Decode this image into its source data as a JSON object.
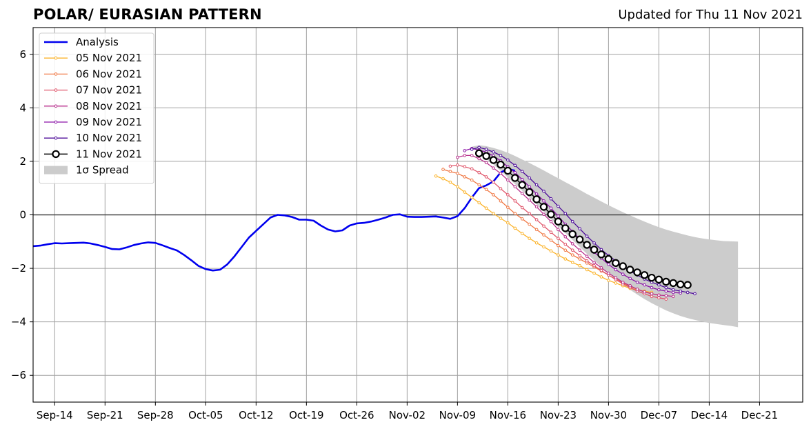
{
  "header": {
    "title": "POLAR/ EURASIAN  PATTERN",
    "updated": "Updated for Thu 11 Nov 2021"
  },
  "chart_data": {
    "type": "line",
    "title": "POLAR/ EURASIAN  PATTERN",
    "subtitle": "Updated for Thu 11 Nov 2021",
    "xlabel": "",
    "ylabel": "",
    "ylim": [
      -7,
      7
    ],
    "xlim": [
      "2021-09-11",
      "2021-12-27"
    ],
    "yticks": [
      -6,
      -4,
      -2,
      0,
      2,
      4,
      6
    ],
    "ytick_labels": [
      "−6",
      "−4",
      "−2",
      "0",
      "2",
      "4",
      "6"
    ],
    "xticks": [
      "2021-09-14",
      "2021-09-21",
      "2021-09-28",
      "2021-10-05",
      "2021-10-12",
      "2021-10-19",
      "2021-10-26",
      "2021-11-02",
      "2021-11-09",
      "2021-11-16",
      "2021-11-23",
      "2021-11-30",
      "2021-12-07",
      "2021-12-14",
      "2021-12-21"
    ],
    "xtick_labels": [
      "Sep-14",
      "Sep-21",
      "Sep-28",
      "Oct-05",
      "Oct-12",
      "Oct-19",
      "Oct-26",
      "Nov-02",
      "Nov-09",
      "Nov-16",
      "Nov-23",
      "Nov-30",
      "Dec-07",
      "Dec-14",
      "Dec-21"
    ],
    "grid": true,
    "legend_position": "top-left",
    "series": [
      {
        "name": "Analysis",
        "color": "#0000ee",
        "style": "thick",
        "start": "2021-09-11",
        "values": [
          -1.17,
          -1.15,
          -1.1,
          -1.06,
          -1.07,
          -1.06,
          -1.05,
          -1.04,
          -1.07,
          -1.13,
          -1.2,
          -1.28,
          -1.29,
          -1.22,
          -1.13,
          -1.07,
          -1.03,
          -1.05,
          -1.14,
          -1.24,
          -1.33,
          -1.5,
          -1.7,
          -1.91,
          -2.03,
          -2.08,
          -2.05,
          -1.85,
          -1.55,
          -1.2,
          -0.85,
          -0.6,
          -0.35,
          -0.1,
          0.0,
          -0.02,
          -0.08,
          -0.18,
          -0.18,
          -0.22,
          -0.4,
          -0.55,
          -0.62,
          -0.58,
          -0.4,
          -0.32,
          -0.3,
          -0.25,
          -0.18,
          -0.1,
          0.0,
          0.02,
          -0.07,
          -0.08,
          -0.08,
          -0.07,
          -0.06,
          -0.1,
          -0.15,
          -0.05,
          0.25,
          0.65,
          1.0,
          1.1,
          1.25,
          1.58,
          1.72,
          1.65
        ]
      },
      {
        "name": "05 Nov 2021",
        "color": "#fbb32a",
        "style": "forecast",
        "start": "2021-11-06",
        "values": [
          1.45,
          1.35,
          1.22,
          1.05,
          0.85,
          0.65,
          0.45,
          0.25,
          0.05,
          -0.13,
          -0.3,
          -0.5,
          -0.7,
          -0.88,
          -1.05,
          -1.2,
          -1.35,
          -1.5,
          -1.65,
          -1.78,
          -1.9,
          -2.05,
          -2.18,
          -2.32,
          -2.45,
          -2.55,
          -2.65,
          -2.75,
          -2.8,
          -2.85,
          -2.9
        ]
      },
      {
        "name": "06 Nov 2021",
        "color": "#f07844",
        "style": "forecast",
        "start": "2021-11-07",
        "values": [
          1.7,
          1.62,
          1.55,
          1.42,
          1.3,
          1.12,
          0.95,
          0.75,
          0.52,
          0.28,
          0.05,
          -0.15,
          -0.35,
          -0.55,
          -0.75,
          -0.95,
          -1.15,
          -1.32,
          -1.5,
          -1.65,
          -1.8,
          -1.95,
          -2.1,
          -2.25,
          -2.4,
          -2.55,
          -2.68,
          -2.78,
          -2.88,
          -2.95,
          -3.0
        ]
      },
      {
        "name": "07 Nov 2021",
        "color": "#e0556a",
        "style": "forecast",
        "start": "2021-11-08",
        "values": [
          1.82,
          1.86,
          1.8,
          1.72,
          1.58,
          1.42,
          1.22,
          0.98,
          0.75,
          0.52,
          0.27,
          0.05,
          -0.18,
          -0.42,
          -0.65,
          -0.88,
          -1.1,
          -1.32,
          -1.52,
          -1.72,
          -1.9,
          -2.08,
          -2.25,
          -2.42,
          -2.58,
          -2.72,
          -2.85,
          -2.95,
          -3.05,
          -3.1,
          -3.15
        ]
      },
      {
        "name": "08 Nov 2021",
        "color": "#b8308d",
        "style": "forecast",
        "start": "2021-11-09",
        "values": [
          2.15,
          2.22,
          2.22,
          2.1,
          1.95,
          1.75,
          1.55,
          1.3,
          1.05,
          0.8,
          0.55,
          0.3,
          0.02,
          -0.25,
          -0.55,
          -0.82,
          -1.08,
          -1.32,
          -1.55,
          -1.78,
          -1.98,
          -2.18,
          -2.35,
          -2.52,
          -2.65,
          -2.78,
          -2.88,
          -2.95,
          -3.0,
          -3.02,
          -3.05
        ]
      },
      {
        "name": "09 Nov 2021",
        "color": "#8a12a6",
        "style": "forecast",
        "start": "2021-11-10",
        "values": [
          2.4,
          2.48,
          2.42,
          2.35,
          2.2,
          2.02,
          1.8,
          1.58,
          1.32,
          1.05,
          0.78,
          0.52,
          0.25,
          -0.05,
          -0.35,
          -0.62,
          -0.9,
          -1.15,
          -1.4,
          -1.62,
          -1.85,
          -2.05,
          -2.22,
          -2.38,
          -2.52,
          -2.62,
          -2.72,
          -2.8,
          -2.85,
          -2.9,
          -2.92
        ]
      },
      {
        "name": "10 Nov 2021",
        "color": "#4d0b9a",
        "style": "forecast",
        "start": "2021-11-11",
        "values": [
          2.45,
          2.52,
          2.45,
          2.35,
          2.22,
          2.05,
          1.85,
          1.62,
          1.38,
          1.12,
          0.88,
          0.6,
          0.32,
          0.05,
          -0.25,
          -0.52,
          -0.8,
          -1.05,
          -1.3,
          -1.52,
          -1.72,
          -1.92,
          -2.1,
          -2.25,
          -2.4,
          -2.52,
          -2.62,
          -2.72,
          -2.8,
          -2.85,
          -2.9,
          -2.95
        ]
      },
      {
        "name": "11 Nov 2021",
        "color": "#000000",
        "style": "current",
        "start": "2021-11-12",
        "values": [
          2.3,
          2.2,
          2.05,
          1.88,
          1.65,
          1.38,
          1.12,
          0.85,
          0.58,
          0.3,
          0.02,
          -0.25,
          -0.5,
          -0.72,
          -0.92,
          -1.12,
          -1.3,
          -1.48,
          -1.65,
          -1.8,
          -1.92,
          -2.05,
          -2.15,
          -2.25,
          -2.35,
          -2.42,
          -2.5,
          -2.55,
          -2.6,
          -2.62
        ]
      }
    ],
    "spread": {
      "name": "1σ Spread",
      "color": "#cccccc",
      "start": "2021-11-11",
      "upper": [
        2.55,
        2.6,
        2.57,
        2.5,
        2.42,
        2.32,
        2.2,
        2.07,
        1.94,
        1.8,
        1.66,
        1.51,
        1.37,
        1.22,
        1.08,
        0.93,
        0.78,
        0.64,
        0.5,
        0.36,
        0.23,
        0.1,
        -0.02,
        -0.14,
        -0.25,
        -0.36,
        -0.46,
        -0.55,
        -0.63,
        -0.7,
        -0.77,
        -0.83,
        -0.88,
        -0.92,
        -0.95,
        -0.98,
        -0.99,
        -1.0
      ],
      "lower": [
        2.55,
        2.3,
        2.1,
        1.88,
        1.65,
        1.4,
        1.15,
        0.9,
        0.65,
        0.39,
        0.12,
        -0.15,
        -0.42,
        -0.68,
        -0.94,
        -1.2,
        -1.46,
        -1.7,
        -1.95,
        -2.18,
        -2.4,
        -2.6,
        -2.8,
        -2.98,
        -3.15,
        -3.3,
        -3.44,
        -3.57,
        -3.68,
        -3.78,
        -3.86,
        -3.93,
        -3.99,
        -4.04,
        -4.08,
        -4.12,
        -4.15,
        -4.2
      ]
    },
    "legend": [
      "Analysis",
      "05 Nov 2021",
      "06 Nov 2021",
      "07 Nov 2021",
      "08 Nov 2021",
      "09 Nov 2021",
      "10 Nov 2021",
      "11 Nov 2021",
      "1σ Spread"
    ]
  }
}
